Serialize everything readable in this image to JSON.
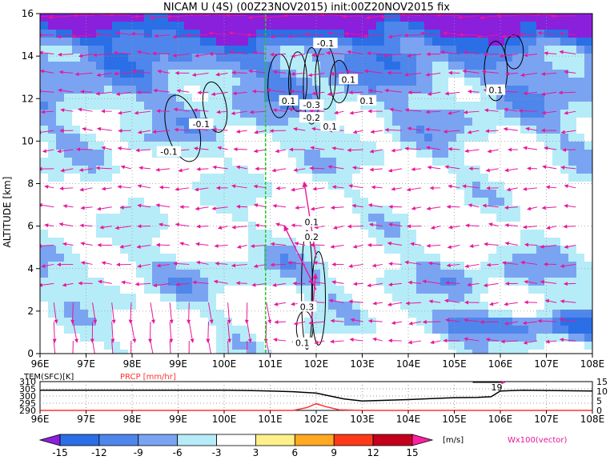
{
  "title": "NICAM U (4S) (00Z23NOV2015) init:00Z20NOV2015 fix",
  "chart_data": [
    {
      "type": "heatmap",
      "title": "NICAM U (4S) (00Z23NOV2015) init:00Z20NOV2015 fix",
      "ylabel": "ALTITUDE [km]",
      "x_ticks": [
        "96E",
        "97E",
        "98E",
        "99E",
        "100E",
        "101E",
        "102E",
        "103E",
        "104E",
        "105E",
        "106E",
        "107E",
        "108E"
      ],
      "y_ticks": [
        "0",
        "2",
        "4",
        "6",
        "8",
        "10",
        "12",
        "14",
        "16"
      ],
      "xlim": [
        96,
        108
      ],
      "ylim": [
        0,
        16
      ],
      "marker_line_lon": 100.9,
      "contour_labels": [
        {
          "text": "-0.1",
          "lon": 98.8,
          "alt": 9.5
        },
        {
          "text": "-0.1",
          "lon": 99.5,
          "alt": 10.8
        },
        {
          "text": "-0.1",
          "lon": 102.2,
          "alt": 14.6
        },
        {
          "text": "0.1",
          "lon": 101.4,
          "alt": 11.9
        },
        {
          "text": "-0.3",
          "lon": 101.9,
          "alt": 11.7
        },
        {
          "text": "-0.2",
          "lon": 101.9,
          "alt": 11.1
        },
        {
          "text": "0.1",
          "lon": 102.3,
          "alt": 10.7
        },
        {
          "text": "0.1",
          "lon": 102.7,
          "alt": 12.9
        },
        {
          "text": "0.1",
          "lon": 103.1,
          "alt": 11.9
        },
        {
          "text": "0.1",
          "lon": 105.9,
          "alt": 12.4
        },
        {
          "text": "0.1",
          "lon": 101.9,
          "alt": 6.2
        },
        {
          "text": "0.2",
          "lon": 101.9,
          "alt": 5.5
        },
        {
          "text": "0.3",
          "lon": 101.8,
          "alt": 2.2
        },
        {
          "text": "0.1",
          "lon": 101.7,
          "alt": 0.5
        }
      ]
    },
    {
      "type": "line",
      "x_ticks": [
        "96E",
        "97E",
        "98E",
        "99E",
        "100E",
        "101E",
        "102E",
        "103E",
        "104E",
        "105E",
        "106E",
        "107E",
        "108E"
      ],
      "left_label": "TEM(SFC)[K]",
      "right_label": "PRCP [mm/hr]",
      "left_ticks": [
        "310",
        "305",
        "300",
        "295",
        "290"
      ],
      "right_ticks": [
        "15",
        "10",
        "5",
        "0"
      ],
      "marker_label": "19",
      "series": [
        {
          "name": "TEM(SFC)[K]",
          "x": [
            96,
            97,
            98,
            99,
            100,
            100.5,
            101,
            101.5,
            102,
            102.3,
            102.6,
            103,
            103.5,
            104,
            104.5,
            105,
            105.5,
            105.8,
            106,
            106.5,
            107,
            108
          ],
          "values": [
            304,
            304,
            304,
            304,
            304,
            303.8,
            303.5,
            303,
            302,
            300,
            298,
            296.5,
            297,
            297.5,
            298.2,
            298.8,
            299,
            299.5,
            303.5,
            304,
            303.8,
            303.5
          ]
        },
        {
          "name": "PRCP [mm/hr]",
          "x": [
            96,
            100,
            101.5,
            101.8,
            102,
            102.2,
            102.5,
            103,
            108
          ],
          "values": [
            0,
            0,
            0,
            1.5,
            3.5,
            2,
            0.3,
            0,
            0
          ]
        }
      ]
    }
  ],
  "colorbar": {
    "ticks": [
      "-15",
      "-12",
      "-9",
      "-6",
      "-3",
      "3",
      "6",
      "9",
      "12",
      "15"
    ],
    "unit": "[m/s]",
    "colors": [
      "#8a1fdc",
      "#2b6fe6",
      "#4f86ec",
      "#7aa4f2",
      "#b6ecf8",
      "#ffffff",
      "#fff08a",
      "#ffa820",
      "#ff3a1a",
      "#c4001c",
      "#ff1f9f"
    ]
  },
  "vector_label": "Wx100(vector)",
  "colors": {
    "vector": "#e8179a",
    "marker": "#22cc22",
    "prcp": "#ff3333"
  }
}
